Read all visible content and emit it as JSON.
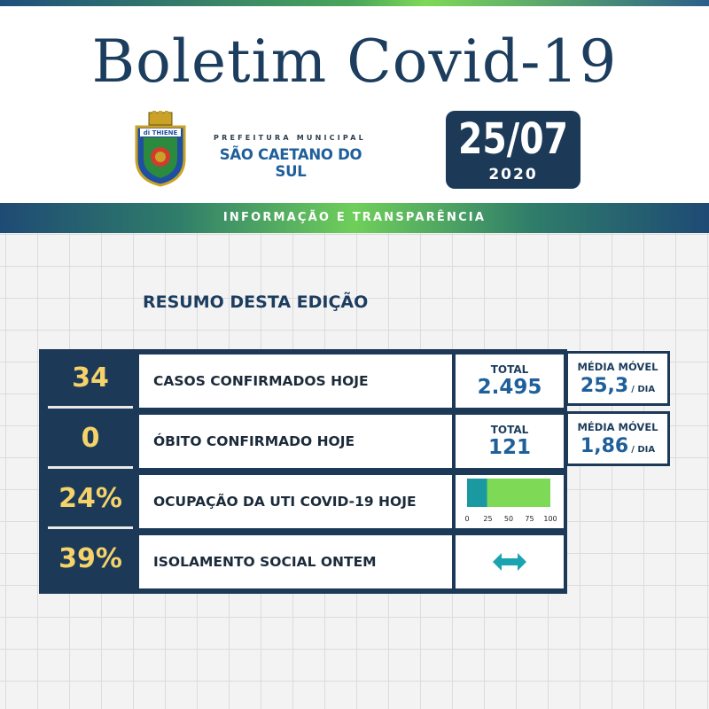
{
  "header": {
    "title": "Boletim Covid-19",
    "prefeitura_label": "PREFEITURA MUNICIPAL",
    "city_label": "SÃO CAETANO DO SUL",
    "crest_text": "di THIENE",
    "date": {
      "day_month": "25/07",
      "year": "2020"
    }
  },
  "banner": {
    "text": "INFORMAÇÃO E TRANSPARÊNCIA"
  },
  "summary": {
    "title": "RESUMO DESTA EDIÇÃO",
    "rows": [
      {
        "value": "34",
        "label": "CASOS CONFIRMADOS HOJE",
        "total_label": "TOTAL",
        "total_value": "2.495",
        "media_label": "MÉDIA MÓVEL",
        "media_value": "25,3",
        "media_unit": "/ DIA"
      },
      {
        "value": "0",
        "label": "ÓBITO CONFIRMADO HOJE",
        "total_label": "TOTAL",
        "total_value": "121",
        "media_label": "MÉDIA MÓVEL",
        "media_value": "1,86",
        "media_unit": "/ DIA"
      },
      {
        "value": "24%",
        "label": "OCUPAÇÃO DA UTI COVID-19 HOJE",
        "gauge": {
          "percent": 24,
          "ticks": [
            "0",
            "25",
            "50",
            "75",
            "100"
          ],
          "fill_color": "#1a9aa0",
          "track_color": "#7ed957"
        }
      },
      {
        "value": "39%",
        "label": "ISOLAMENTO SOCIAL ONTEM",
        "icon": "double-arrow-icon",
        "icon_color": "#1aa3b0"
      }
    ]
  },
  "colors": {
    "navy": "#1c3a58",
    "accent_yellow": "#f5d36a",
    "blue_text": "#1f5f9a"
  }
}
